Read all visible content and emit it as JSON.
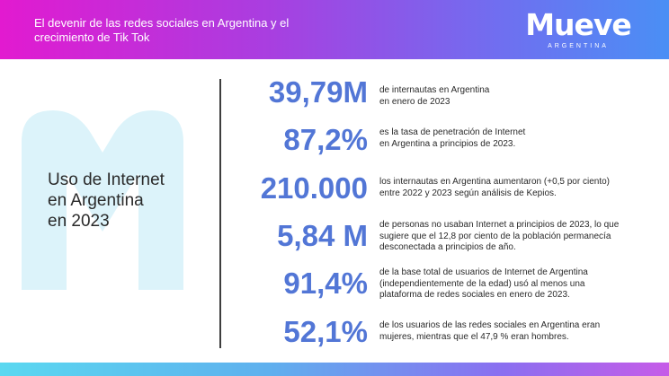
{
  "header": {
    "title": "El devenir de las redes sociales en Argentina y el crecimiento de Tik Tok",
    "logo_word": "Mueve",
    "logo_sub": "ARGENTINA"
  },
  "section": {
    "title_line1": "Uso de Internet",
    "title_line2": "en Argentina",
    "title_line3": "en 2023"
  },
  "stats": [
    {
      "value": "39,79M",
      "lines": [
        "de internautas en Argentina",
        "en enero de 2023"
      ]
    },
    {
      "value": "87,2%",
      "lines": [
        "es la tasa de penetración de Internet",
        "en Argentina a principios de 2023."
      ]
    },
    {
      "value": "210.000",
      "lines": [
        "los internautas en Argentina aumentaron (+0,5 por ciento)",
        "entre 2022 y 2023 según análisis de Kepios."
      ]
    },
    {
      "value": "5,84 M",
      "lines": [
        "de personas no usaban Internet a principios de 2023, lo que",
        "sugiere que el 12,8 por ciento de la población permanecía",
        "desconectada a principios de año."
      ]
    },
    {
      "value": "91,4%",
      "lines": [
        "de la base total de usuarios de Internet de Argentina",
        "(independientemente de la edad) usó al menos una",
        "plataforma de redes sociales en enero de 2023."
      ]
    },
    {
      "value": "52,1%",
      "lines": [
        "de los usuarios de las redes sociales en Argentina eran",
        "mujeres, mientras que el 47,9 % eran hombres."
      ]
    }
  ],
  "colors": {
    "stat_blue": "#5276d6",
    "watermark": "#dcf3fa",
    "header_start": "#e21ad0",
    "header_end": "#4a8ff5"
  }
}
